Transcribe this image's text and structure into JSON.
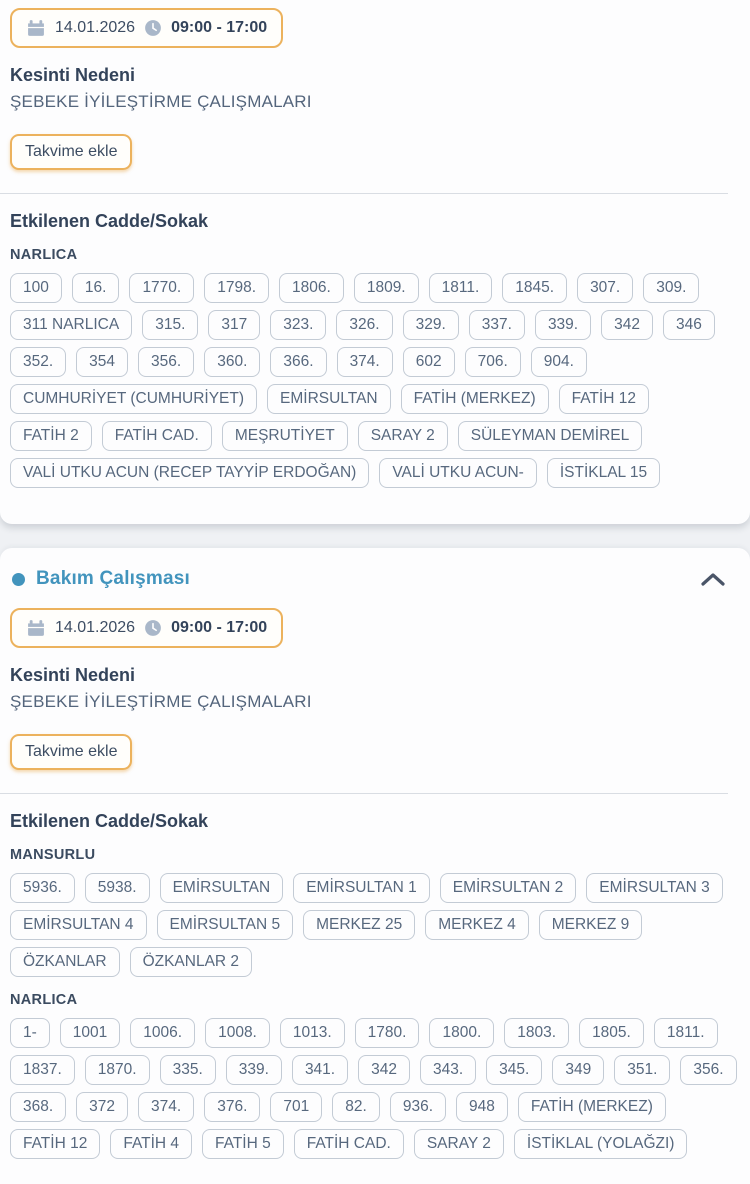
{
  "page": {
    "background": "#eff1f4"
  },
  "colors": {
    "accent_orange": "#ecb25d",
    "accent_teal": "#4294bd",
    "heading_text": "#33435a",
    "body_text": "#54657c",
    "chip_text": "#57687e",
    "chip_border": "#c3cbd5",
    "icon_gray_blue": "#a9b7c9",
    "chevron_color": "#4a5568"
  },
  "icons": {
    "calendar": "🗓",
    "clock": "🕘",
    "bullet": "●",
    "chevron_up": "⌃"
  },
  "cards": [
    {
      "date": "14.01.2026",
      "time": "09:00 - 17:00",
      "reason_label": "Kesinti Nedeni",
      "reason": "ŞEBEKE İYİLEŞTİRME ÇALIŞMALARI",
      "calendar_button": "Takvime ekle",
      "affected_label": "Etkilenen Cadde/Sokak",
      "groups": [
        {
          "name": "NARLICA",
          "streets": [
            "100",
            "16.",
            "1770.",
            "1798.",
            "1806.",
            "1809.",
            "1811.",
            "1845.",
            "307.",
            "309.",
            "311 NARLICA",
            "315.",
            "317",
            "323.",
            "326.",
            "329.",
            "337.",
            "339.",
            "342",
            "346",
            "352.",
            "354",
            "356.",
            "360.",
            "366.",
            "374.",
            "602",
            "706.",
            "904.",
            "CUMHURİYET (CUMHURİYET)",
            "EMİRSULTAN",
            "FATİH (MERKEZ)",
            "FATİH 12",
            "FATİH 2",
            "FATİH CAD.",
            "MEŞRUTİYET",
            "SARAY 2",
            "SÜLEYMAN DEMİREL",
            "VALİ UTKU ACUN (RECEP TAYYİP ERDOĞAN)",
            "VALİ UTKU ACUN-",
            "İSTİKLAL 15"
          ]
        }
      ]
    },
    {
      "title": "Bakım Çalışması",
      "date": "14.01.2026",
      "time": "09:00 - 17:00",
      "reason_label": "Kesinti Nedeni",
      "reason": "ŞEBEKE İYİLEŞTİRME ÇALIŞMALARI",
      "calendar_button": "Takvime ekle",
      "affected_label": "Etkilenen Cadde/Sokak",
      "groups": [
        {
          "name": "MANSURLU",
          "streets": [
            "5936.",
            "5938.",
            "EMİRSULTAN",
            "EMİRSULTAN 1",
            "EMİRSULTAN 2",
            "EMİRSULTAN 3",
            "EMİRSULTAN 4",
            "EMİRSULTAN 5",
            "MERKEZ 25",
            "MERKEZ 4",
            "MERKEZ 9",
            "ÖZKANLAR",
            "ÖZKANLAR 2"
          ]
        },
        {
          "name": "NARLICA",
          "streets": [
            "1-",
            "1001",
            "1006.",
            "1008.",
            "1013.",
            "1780.",
            "1800.",
            "1803.",
            "1805.",
            "1811.",
            "1837.",
            "1870.",
            "335.",
            "339.",
            "341.",
            "342",
            "343.",
            "345.",
            "349",
            "351.",
            "356.",
            "368.",
            "372",
            "374.",
            "376.",
            "701",
            "82.",
            "936.",
            "948",
            "FATİH (MERKEZ)",
            "FATİH 12",
            "FATİH 4",
            "FATİH 5",
            "FATİH CAD.",
            "SARAY 2",
            "İSTİKLAL (YOLAĞZI)"
          ]
        }
      ]
    }
  ]
}
